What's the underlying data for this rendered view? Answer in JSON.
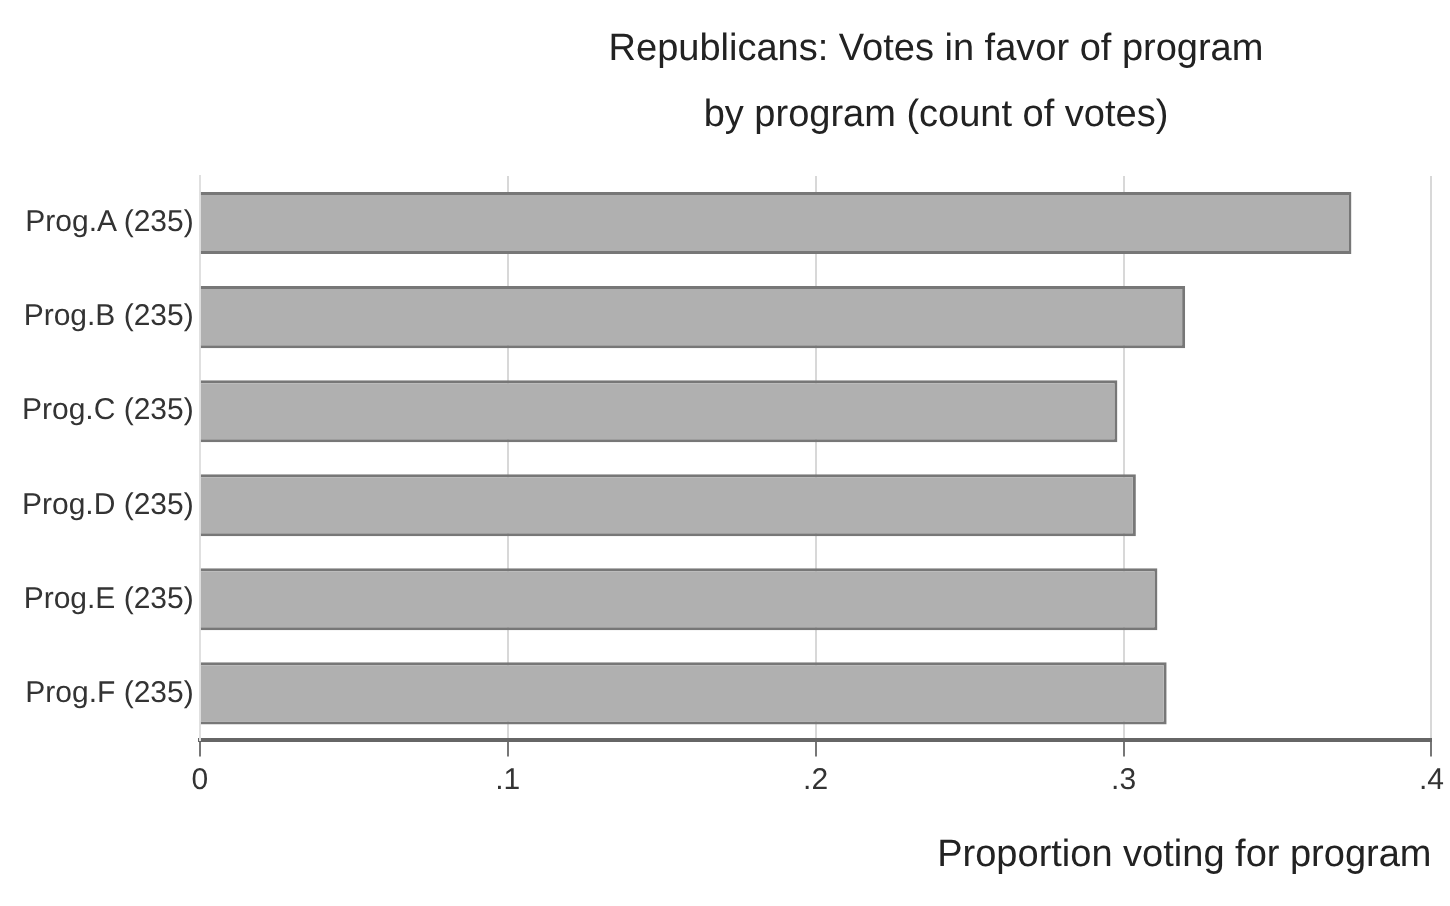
{
  "chart_data": {
    "type": "bar",
    "orientation": "horizontal",
    "title": "Republicans: Votes in favor of program\nby program (count of votes)",
    "xlabel": "Proportion voting for program",
    "categories": [
      "Prog.A (235)",
      "Prog.B (235)",
      "Prog.C (235)",
      "Prog.D (235)",
      "Prog.E (235)",
      "Prog.F (235)"
    ],
    "values": [
      0.374,
      0.32,
      0.298,
      0.304,
      0.311,
      0.314
    ],
    "color": "#b0b0b0",
    "xlim": [
      0,
      0.4
    ],
    "xticks": [
      {
        "value": 0,
        "label": "0"
      },
      {
        "value": 0.1,
        "label": ".1"
      },
      {
        "value": 0.2,
        "label": ".2"
      },
      {
        "value": 0.3,
        "label": ".3"
      },
      {
        "value": 0.4,
        "label": ".4"
      }
    ],
    "grid": "x",
    "legend": false
  }
}
